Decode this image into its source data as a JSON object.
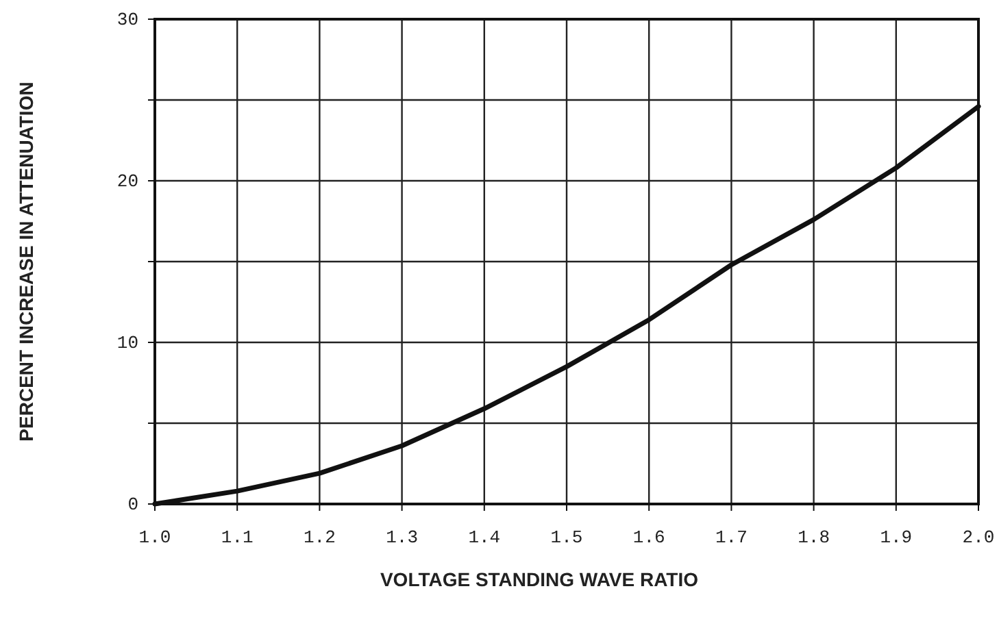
{
  "chart_data": {
    "type": "line",
    "xlabel": "VOLTAGE STANDING WAVE RATIO",
    "ylabel": "PERCENT INCREASE IN ATTENUATION",
    "x": [
      1.0,
      1.1,
      1.2,
      1.3,
      1.4,
      1.5,
      1.6,
      1.7,
      1.8,
      1.9,
      2.0
    ],
    "series": [
      {
        "color": "#111111",
        "values": [
          0,
          0.8,
          1.9,
          3.6,
          5.9,
          8.5,
          11.4,
          14.8,
          17.6,
          20.8,
          24.6
        ]
      }
    ],
    "xlim": [
      1.0,
      2.0
    ],
    "xticks": [
      {
        "value": 1.0,
        "label": "1.0"
      },
      1.1,
      1.2,
      1.3,
      1.4,
      1.5,
      1.6,
      1.7,
      1.8,
      1.9,
      {
        "value": 2.0,
        "label": "2.0"
      }
    ],
    "ylim": [
      0,
      30
    ],
    "yticks": [
      0,
      {
        "value": 5,
        "label": null
      },
      10,
      {
        "value": 15,
        "label": null
      },
      20,
      {
        "value": 25,
        "label": null
      },
      30
    ],
    "grid": true,
    "marker": "none",
    "line_style": "solid"
  }
}
